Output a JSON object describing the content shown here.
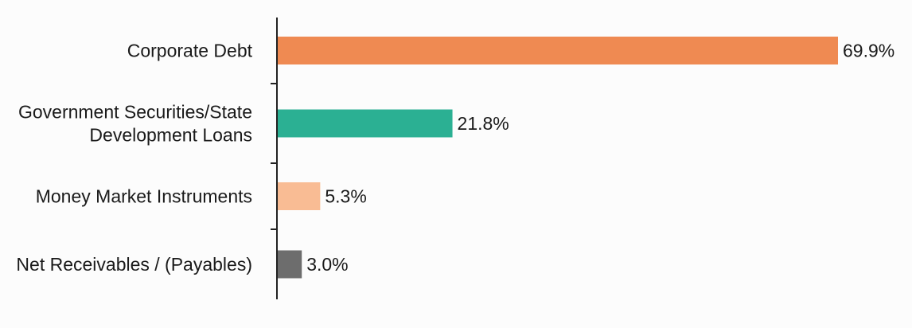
{
  "chart_data": {
    "type": "bar",
    "orientation": "horizontal",
    "categories": [
      [
        "Corporate Debt"
      ],
      [
        "Government Securities/State",
        "Development Loans"
      ],
      [
        "Money Market Instruments"
      ],
      [
        "Net Receivables / (Payables)"
      ]
    ],
    "values": [
      69.9,
      21.8,
      5.3,
      3.0
    ],
    "value_labels": [
      "69.9%",
      "21.8%",
      "5.3%",
      "3.0%"
    ],
    "colors": [
      "#ef8a52",
      "#2bb093",
      "#f9bc94",
      "#6d6d6d"
    ],
    "xlim": [
      0,
      70
    ],
    "grid": false,
    "legend": "none",
    "title": "",
    "xlabel": "",
    "ylabel": ""
  }
}
